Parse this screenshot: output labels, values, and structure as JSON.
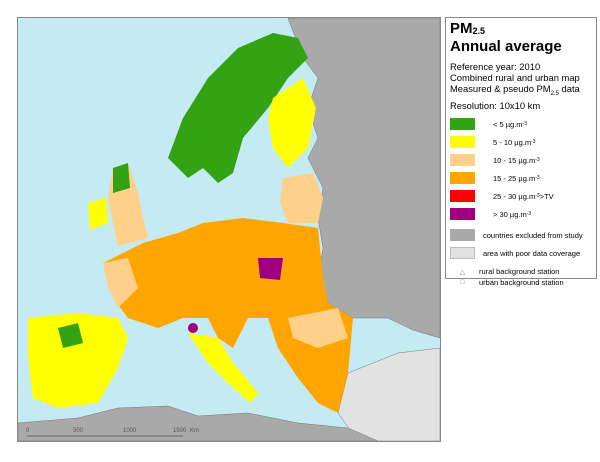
{
  "legend": {
    "title_main": "PM",
    "title_sub": "2.5",
    "title_line2": "Annual average",
    "info": {
      "line1": "Reference year: 2010",
      "line2": "Combined rural and urban map",
      "line3_pre": "Measured & pseudo PM",
      "line3_sub": "2.5",
      "line3_post": " data",
      "line4": "Resolution: 10x10 km"
    },
    "classes": [
      {
        "label": "<  5  µg.m",
        "sup": "-3",
        "extra": "",
        "color": "#33a314"
      },
      {
        "label": "5 - 10  µg.m",
        "sup": "-3",
        "extra": "",
        "color": "#ffff00"
      },
      {
        "label": "10 - 15  µg.m",
        "sup": "-3",
        "extra": "",
        "color": "#ffd08a"
      },
      {
        "label": "15 - 25  µg.m",
        "sup": "-3",
        "extra": "",
        "color": "#ffa500"
      },
      {
        "label": "25 - 30  µg.m",
        "sup": "-3",
        "extra": " >TV",
        "color": "#ff0000"
      },
      {
        "label": ">  30  µg.m",
        "sup": "-3",
        "extra": "",
        "color": "#a0007f"
      }
    ],
    "excluded": {
      "label": "countries excluded from study",
      "color": "#a9a9a9"
    },
    "poor": {
      "label": "area with poor data coverage",
      "color": "#e2e2e2"
    },
    "rural_station": {
      "label": "rural background station",
      "icon": "triangle-icon"
    },
    "urban_station": {
      "label": "urban background station",
      "icon": "square-icon"
    }
  },
  "scale_bar": {
    "ticks": [
      "0",
      "500",
      "1000",
      "1500"
    ],
    "unit": "Km"
  },
  "colors": {
    "sea": "#c4ebf3",
    "border": "#888888"
  }
}
